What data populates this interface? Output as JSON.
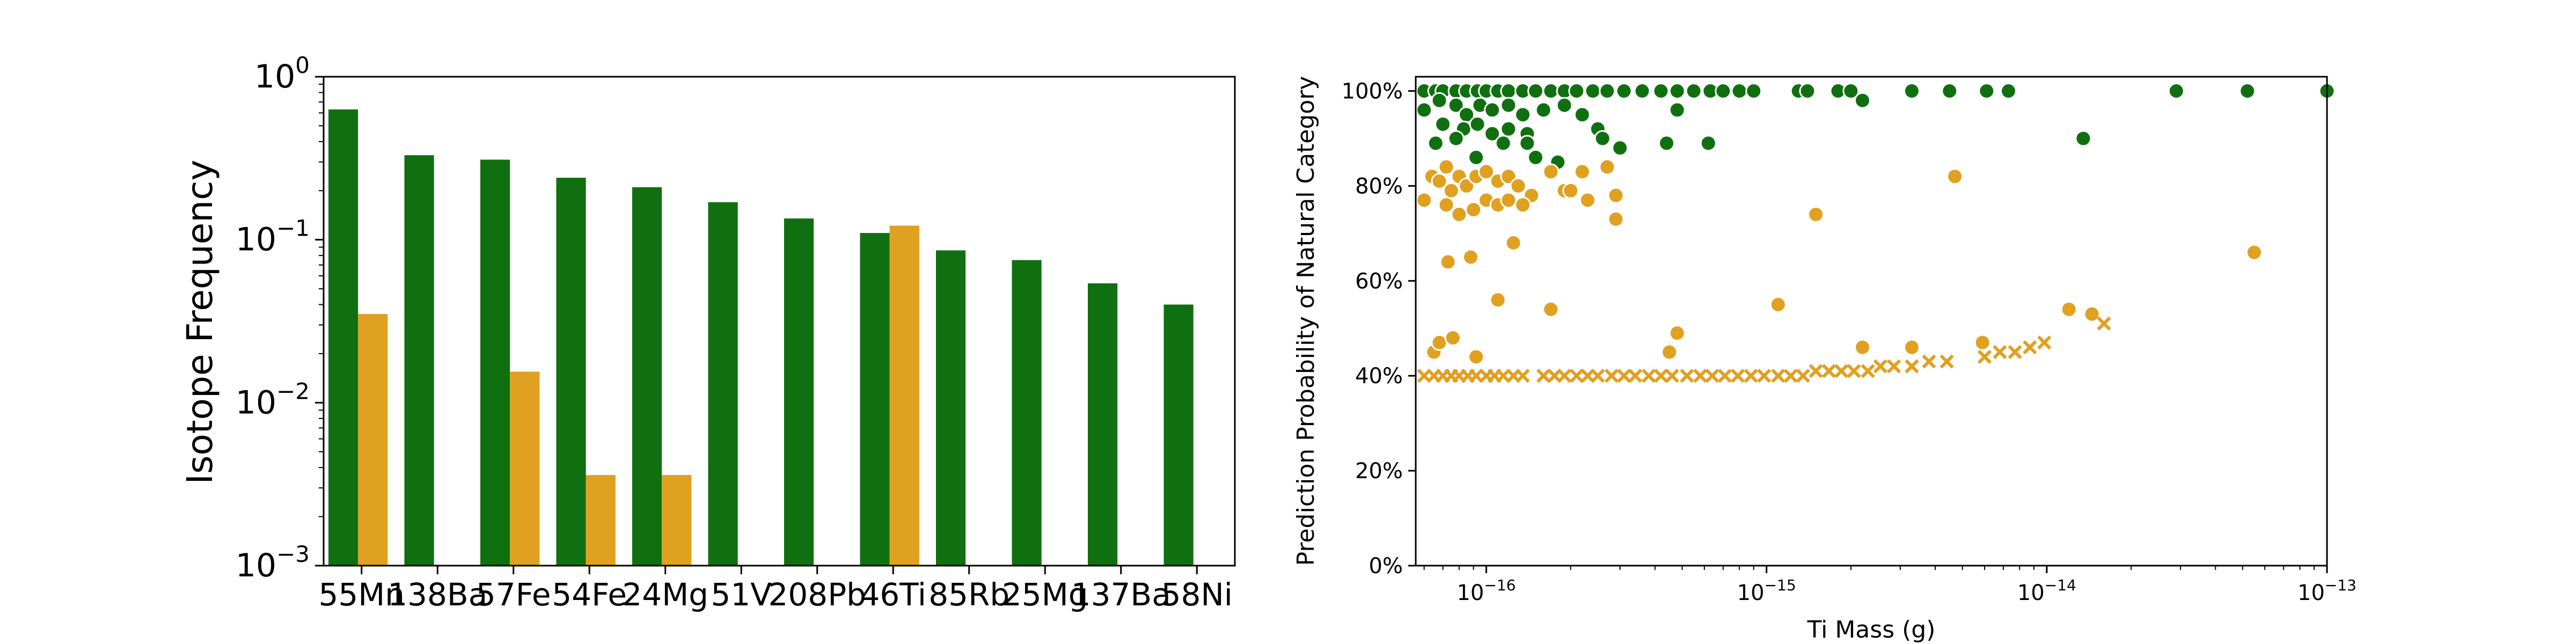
{
  "colors": {
    "natural": "#107010",
    "synthetic": "#e0a020"
  },
  "chart_data": [
    {
      "type": "bar",
      "ylabel": "Isotope Frequency",
      "yscale": "log",
      "ylim": [
        0.001,
        1
      ],
      "yticks": [
        {
          "value": 0.001,
          "base": "10",
          "exp": "−3"
        },
        {
          "value": 0.01,
          "base": "10",
          "exp": "−2"
        },
        {
          "value": 0.1,
          "base": "10",
          "exp": "−1"
        },
        {
          "value": 1,
          "base": "10",
          "exp": "0"
        }
      ],
      "categories": [
        "55Mn",
        "138Ba",
        "57Fe",
        "54Fe",
        "24Mg",
        "51V",
        "208Pb",
        "46Ti",
        "85Rb",
        "25Mg",
        "137Ba",
        "58Ni"
      ],
      "series": [
        {
          "color": "#107010",
          "values": [
            0.63,
            0.33,
            0.31,
            0.24,
            0.21,
            0.17,
            0.135,
            0.11,
            0.086,
            0.075,
            0.054,
            0.04
          ]
        },
        {
          "color": "#e0a020",
          "values": [
            0.035,
            null,
            0.0155,
            0.0036,
            0.0036,
            null,
            null,
            0.122,
            null,
            null,
            null,
            null
          ]
        }
      ]
    },
    {
      "type": "scatter",
      "xlabel": "Ti Mass (g)",
      "ylabel": "Prediction Probability of Natural Category",
      "xscale": "log",
      "xlim": [
        5.6e-17,
        1e-13
      ],
      "ylim": [
        0,
        1.03
      ],
      "xticks": [
        {
          "value": 1e-16,
          "base": "10",
          "exp": "−16"
        },
        {
          "value": 1e-15,
          "base": "10",
          "exp": "−15"
        },
        {
          "value": 1e-14,
          "base": "10",
          "exp": "−14"
        },
        {
          "value": 1e-13,
          "base": "10",
          "exp": "−13"
        }
      ],
      "yticks": [
        {
          "value": 0,
          "label": "0%"
        },
        {
          "value": 0.2,
          "label": "20%"
        },
        {
          "value": 0.4,
          "label": "40%"
        },
        {
          "value": 0.6,
          "label": "60%"
        },
        {
          "value": 0.8,
          "label": "80%"
        },
        {
          "value": 1.0,
          "label": "100%"
        }
      ],
      "series": [
        {
          "marker": "circle",
          "color": "#107010",
          "points": [
            [
              6e-17,
              1.0
            ],
            [
              6.6e-17,
              1.0
            ],
            [
              7e-17,
              1.0
            ],
            [
              7.8e-17,
              1.0
            ],
            [
              8.5e-17,
              1.0
            ],
            [
              9.3e-17,
              1.0
            ],
            [
              1e-16,
              1.0
            ],
            [
              1.1e-16,
              1.0
            ],
            [
              1.2e-16,
              1.0
            ],
            [
              1.35e-16,
              1.0
            ],
            [
              1.5e-16,
              1.0
            ],
            [
              1.7e-16,
              1.0
            ],
            [
              1.9e-16,
              1.0
            ],
            [
              2.1e-16,
              1.0
            ],
            [
              2.4e-16,
              1.0
            ],
            [
              2.7e-16,
              1.0
            ],
            [
              3.1e-16,
              1.0
            ],
            [
              3.6e-16,
              1.0
            ],
            [
              4.2e-16,
              1.0
            ],
            [
              4.8e-16,
              1.0
            ],
            [
              5.5e-16,
              1.0
            ],
            [
              6.3e-16,
              1.0
            ],
            [
              7e-16,
              1.0
            ],
            [
              8e-16,
              1.0
            ],
            [
              9e-16,
              1.0
            ],
            [
              1.3e-15,
              1.0
            ],
            [
              1.4e-15,
              1.0
            ],
            [
              1.8e-15,
              1.0
            ],
            [
              2e-15,
              1.0
            ],
            [
              3.3e-15,
              1.0
            ],
            [
              4.5e-15,
              1.0
            ],
            [
              6.1e-15,
              1.0
            ],
            [
              7.3e-15,
              1.0
            ],
            [
              2.9e-14,
              1.0
            ],
            [
              5.2e-14,
              1.0
            ],
            [
              1e-13,
              1.0
            ],
            [
              6e-17,
              0.96
            ],
            [
              6.8e-17,
              0.98
            ],
            [
              7.8e-17,
              0.97
            ],
            [
              8.5e-17,
              0.95
            ],
            [
              9.5e-17,
              0.97
            ],
            [
              1.05e-16,
              0.96
            ],
            [
              1.2e-16,
              0.97
            ],
            [
              1.35e-16,
              0.95
            ],
            [
              1.6e-16,
              0.96
            ],
            [
              1.9e-16,
              0.97
            ],
            [
              2.2e-16,
              0.95
            ],
            [
              4.8e-16,
              0.96
            ],
            [
              7e-17,
              0.93
            ],
            [
              8.3e-17,
              0.92
            ],
            [
              9.3e-17,
              0.93
            ],
            [
              1.05e-16,
              0.91
            ],
            [
              1.2e-16,
              0.92
            ],
            [
              1.4e-16,
              0.91
            ],
            [
              2.5e-16,
              0.92
            ],
            [
              6.6e-17,
              0.89
            ],
            [
              7.8e-17,
              0.9
            ],
            [
              1.15e-16,
              0.89
            ],
            [
              1.4e-16,
              0.89
            ],
            [
              2.6e-16,
              0.9
            ],
            [
              3e-16,
              0.88
            ],
            [
              4.4e-16,
              0.89
            ],
            [
              6.2e-16,
              0.89
            ],
            [
              9.2e-17,
              0.86
            ],
            [
              1.5e-16,
              0.86
            ],
            [
              1.8e-16,
              0.85
            ],
            [
              2.2e-15,
              0.98
            ],
            [
              1.35e-14,
              0.9
            ]
          ]
        },
        {
          "marker": "circle",
          "color": "#e0a020",
          "points": [
            [
              6e-17,
              0.77
            ],
            [
              6.4e-17,
              0.82
            ],
            [
              6.8e-17,
              0.81
            ],
            [
              7.2e-17,
              0.84
            ],
            [
              7.5e-17,
              0.79
            ],
            [
              8e-17,
              0.82
            ],
            [
              8.5e-17,
              0.8
            ],
            [
              9.2e-17,
              0.82
            ],
            [
              1e-16,
              0.83
            ],
            [
              1.1e-16,
              0.81
            ],
            [
              1.2e-16,
              0.82
            ],
            [
              1.3e-16,
              0.8
            ],
            [
              1.45e-16,
              0.78
            ],
            [
              1.7e-16,
              0.83
            ],
            [
              1.9e-16,
              0.79
            ],
            [
              2.2e-16,
              0.83
            ],
            [
              2.7e-16,
              0.84
            ],
            [
              7.2e-17,
              0.76
            ],
            [
              8e-17,
              0.74
            ],
            [
              9e-17,
              0.75
            ],
            [
              1e-16,
              0.77
            ],
            [
              1.1e-16,
              0.76
            ],
            [
              1.2e-16,
              0.77
            ],
            [
              1.35e-16,
              0.76
            ],
            [
              2e-16,
              0.79
            ],
            [
              2.3e-16,
              0.77
            ],
            [
              2.9e-16,
              0.78
            ],
            [
              2.9e-16,
              0.73
            ],
            [
              1.5e-15,
              0.74
            ],
            [
              4.7e-15,
              0.82
            ],
            [
              1.25e-16,
              0.68
            ],
            [
              7.3e-17,
              0.64
            ],
            [
              8.8e-17,
              0.65
            ],
            [
              1.1e-16,
              0.56
            ],
            [
              1.7e-16,
              0.54
            ],
            [
              6.5e-17,
              0.45
            ],
            [
              6.8e-17,
              0.47
            ],
            [
              7.6e-17,
              0.48
            ],
            [
              9.2e-17,
              0.44
            ],
            [
              4.5e-16,
              0.45
            ],
            [
              4.8e-16,
              0.49
            ],
            [
              1.1e-15,
              0.55
            ],
            [
              2.2e-15,
              0.46
            ],
            [
              3.3e-15,
              0.46
            ],
            [
              5.9e-15,
              0.47
            ],
            [
              1.2e-14,
              0.54
            ],
            [
              1.45e-14,
              0.53
            ],
            [
              5.5e-14,
              0.66
            ]
          ]
        },
        {
          "marker": "x",
          "color": "#e0a020",
          "points": [
            [
              6e-17,
              0.4
            ],
            [
              6.5e-17,
              0.4
            ],
            [
              7e-17,
              0.4
            ],
            [
              7.5e-17,
              0.4
            ],
            [
              8e-17,
              0.4
            ],
            [
              8.6e-17,
              0.4
            ],
            [
              9.2e-17,
              0.4
            ],
            [
              1e-16,
              0.4
            ],
            [
              1.07e-16,
              0.4
            ],
            [
              1.15e-16,
              0.4
            ],
            [
              1.25e-16,
              0.4
            ],
            [
              1.35e-16,
              0.4
            ],
            [
              1.6e-16,
              0.4
            ],
            [
              1.75e-16,
              0.4
            ],
            [
              1.9e-16,
              0.4
            ],
            [
              2.1e-16,
              0.4
            ],
            [
              2.3e-16,
              0.4
            ],
            [
              2.5e-16,
              0.4
            ],
            [
              2.8e-16,
              0.4
            ],
            [
              3.1e-16,
              0.4
            ],
            [
              3.4e-16,
              0.4
            ],
            [
              3.8e-16,
              0.4
            ],
            [
              4.2e-16,
              0.4
            ],
            [
              4.6e-16,
              0.4
            ],
            [
              5.2e-16,
              0.4
            ],
            [
              5.8e-16,
              0.4
            ],
            [
              6.4e-16,
              0.4
            ],
            [
              7.1e-16,
              0.4
            ],
            [
              7.9e-16,
              0.4
            ],
            [
              8.8e-16,
              0.4
            ],
            [
              9.8e-16,
              0.4
            ],
            [
              1.1e-15,
              0.4
            ],
            [
              1.22e-15,
              0.4
            ],
            [
              1.35e-15,
              0.4
            ],
            [
              1.5e-15,
              0.41
            ],
            [
              1.67e-15,
              0.41
            ],
            [
              1.85e-15,
              0.41
            ],
            [
              2.05e-15,
              0.41
            ],
            [
              2.3e-15,
              0.41
            ],
            [
              2.55e-15,
              0.42
            ],
            [
              2.85e-15,
              0.42
            ],
            [
              3.3e-15,
              0.42
            ],
            [
              3.8e-15,
              0.43
            ],
            [
              4.4e-15,
              0.43
            ],
            [
              6e-15,
              0.44
            ],
            [
              6.8e-15,
              0.45
            ],
            [
              7.7e-15,
              0.45
            ],
            [
              8.7e-15,
              0.46
            ],
            [
              9.8e-15,
              0.47
            ],
            [
              1.6e-14,
              0.51
            ]
          ]
        }
      ]
    }
  ]
}
